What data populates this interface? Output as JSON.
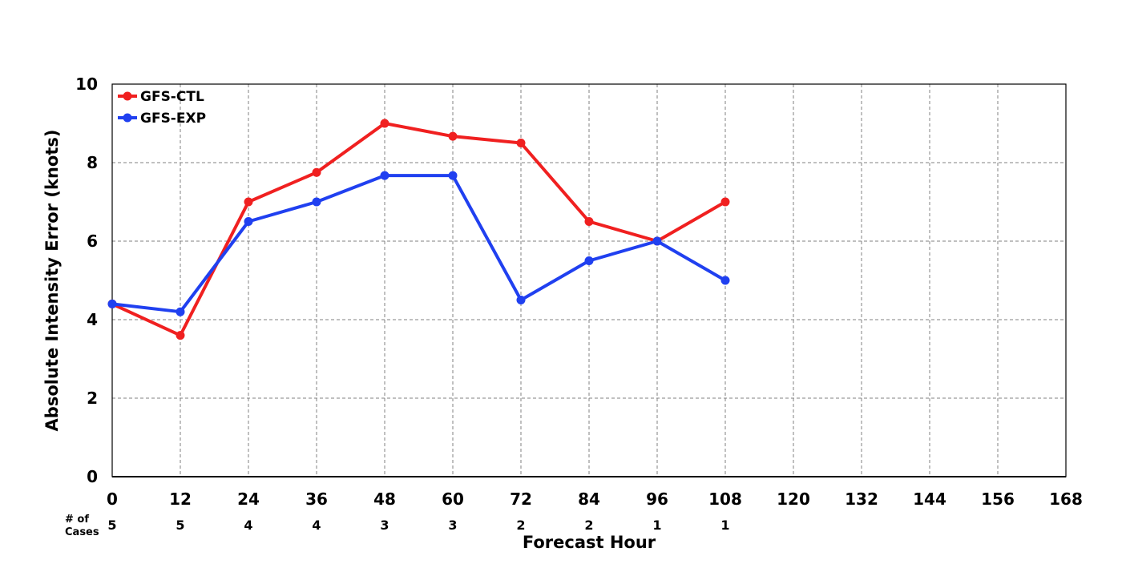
{
  "chart_data": {
    "type": "line",
    "xlabel": "Forecast Hour",
    "ylabel": "Absolute Intensity Error (knots)",
    "x": [
      0,
      12,
      24,
      36,
      48,
      60,
      72,
      84,
      96,
      108
    ],
    "xticks": [
      0,
      12,
      24,
      36,
      48,
      60,
      72,
      84,
      96,
      108,
      120,
      132,
      144,
      156,
      168
    ],
    "yticks": [
      0,
      2,
      4,
      6,
      8,
      10
    ],
    "xlim": [
      0,
      168
    ],
    "ylim": [
      0,
      10
    ],
    "grid": true,
    "legend_position": "top-left",
    "series": [
      {
        "name": "GFS-CTL",
        "color": "#f02020",
        "values": [
          4.4,
          3.6,
          7.0,
          7.75,
          9.0,
          8.67,
          8.5,
          6.5,
          6.0,
          7.0
        ]
      },
      {
        "name": "GFS-EXP",
        "color": "#2040f0",
        "values": [
          4.4,
          4.2,
          6.5,
          7.0,
          7.67,
          7.67,
          4.5,
          5.5,
          6.0,
          5.0
        ]
      }
    ],
    "cases_label_line1": "# of",
    "cases_label_line2": "Cases",
    "cases": [
      5,
      5,
      4,
      4,
      3,
      3,
      2,
      2,
      1,
      1
    ]
  }
}
